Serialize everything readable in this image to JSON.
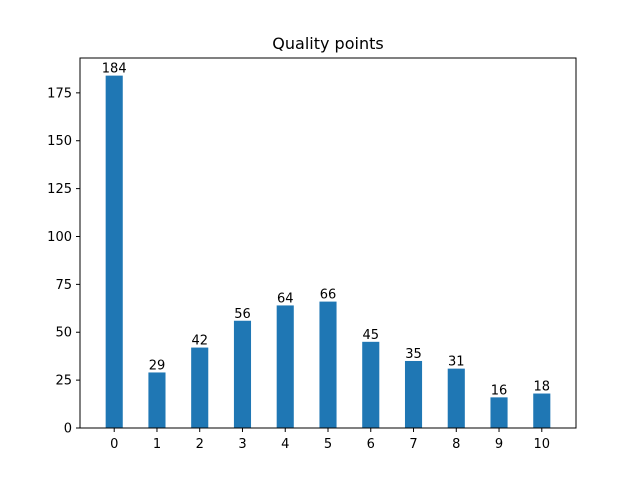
{
  "chart_data": {
    "type": "bar",
    "title": "Quality points",
    "xlabel": "",
    "ylabel": "",
    "categories": [
      "0",
      "1",
      "2",
      "3",
      "4",
      "5",
      "6",
      "7",
      "8",
      "9",
      "10"
    ],
    "values": [
      184,
      29,
      42,
      56,
      64,
      66,
      45,
      35,
      31,
      16,
      18
    ],
    "ylim": [
      0,
      193.2
    ],
    "yticks": [
      0,
      25,
      50,
      75,
      100,
      125,
      150,
      175
    ],
    "bar_color": "#1f77b4",
    "grid": false,
    "legend": "none",
    "data_labels": true
  }
}
